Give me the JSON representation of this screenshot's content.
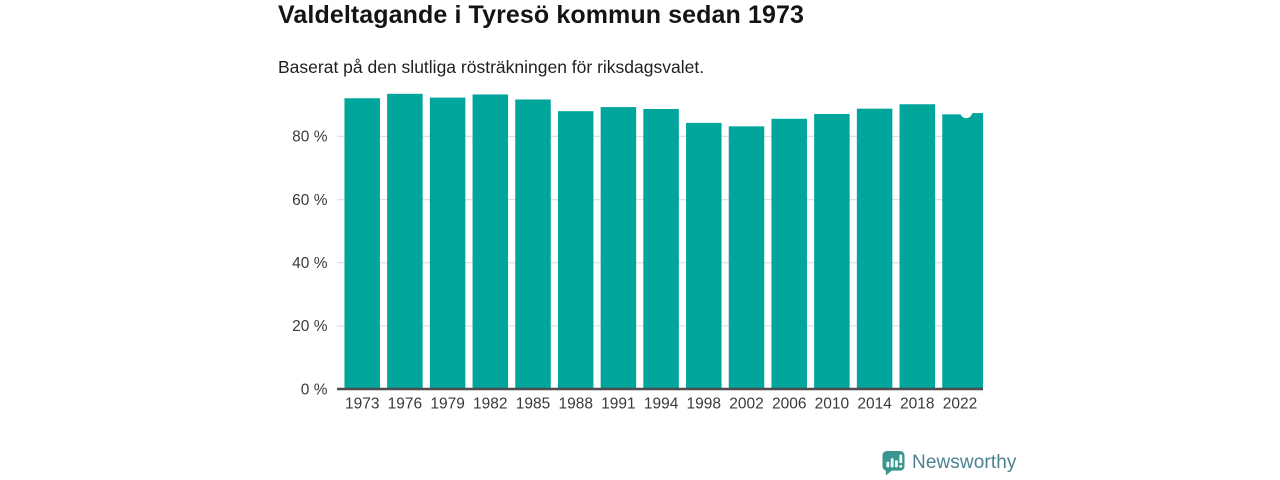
{
  "title": "Valdeltagande i Tyresö kommun sedan 1973",
  "subtitle": "Baserat på den slutliga rösträkningen för riksdagsvalet.",
  "chart_data": {
    "type": "bar",
    "title": "Valdeltagande i Tyresö kommun sedan 1973",
    "subtitle": "Baserat på den slutliga rösträkningen för riksdagsvalet.",
    "categories": [
      "1973",
      "1976",
      "1979",
      "1982",
      "1985",
      "1988",
      "1991",
      "1994",
      "1998",
      "2002",
      "2006",
      "2010",
      "2014",
      "2018",
      "2022"
    ],
    "values": [
      92.1,
      93.5,
      92.3,
      93.3,
      91.7,
      88.0,
      89.3,
      88.7,
      84.3,
      83.2,
      85.6,
      87.1,
      88.8,
      90.2,
      87.0
    ],
    "unit": "%",
    "xlabel": "",
    "ylabel": "",
    "ylim": [
      0,
      100
    ],
    "yticks": [
      0,
      20,
      40,
      60,
      80
    ],
    "ytick_labels": [
      "0 %",
      "20 %",
      "40 %",
      "60 %",
      "80 %"
    ],
    "grid": true,
    "legend": "none",
    "bar_color": "#00a59b",
    "annotation": {
      "category": "2022",
      "secondary_value": 87.4,
      "marker": "white-circle-notch"
    }
  },
  "branding": {
    "logo_text": "Newsworthy",
    "logo_icon": "newsworthy-badge-icon",
    "badge_color": "#38968f",
    "text_color": "#4a8291"
  }
}
